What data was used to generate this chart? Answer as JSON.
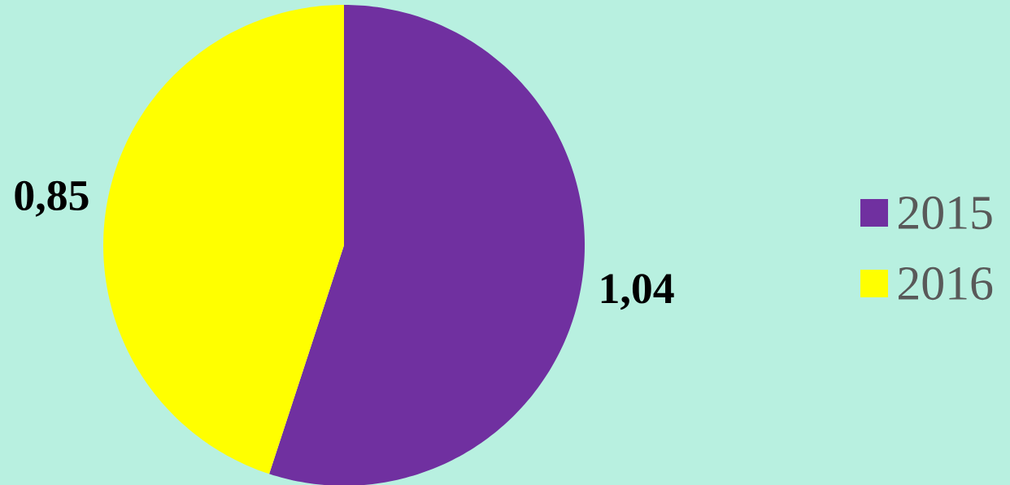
{
  "chart_data": {
    "type": "pie",
    "categories": [
      "2015",
      "2016"
    ],
    "values": [
      1.04,
      0.85
    ],
    "colors": [
      "#7030a0",
      "#ffff00"
    ],
    "value_labels": [
      "1,04",
      "0,85"
    ],
    "legend": "right"
  }
}
